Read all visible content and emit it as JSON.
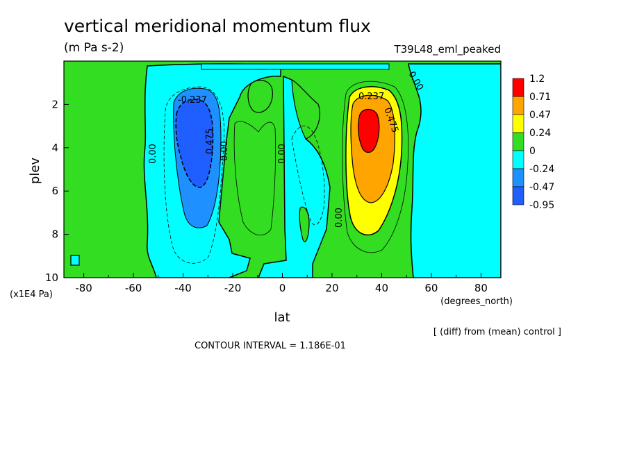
{
  "chart_data": {
    "type": "heatmap",
    "title": "vertical meridional momentum flux",
    "units": "(m Pa s-2)",
    "run_label": "T39L48_eml_peaked",
    "xlabel": "lat",
    "xunits": "(degrees_north)",
    "ylabel": "plev",
    "yunits": "(x1E4 Pa)",
    "xlim": [
      -88,
      88
    ],
    "ylim": [
      10,
      0
    ],
    "x_ticks": [
      -80,
      -60,
      -40,
      -20,
      0,
      20,
      40,
      60,
      80
    ],
    "x_tick_labels": [
      "-80",
      "-60",
      "-40",
      "-20",
      "0",
      "20",
      "40",
      "60",
      "80"
    ],
    "y_ticks": [
      2,
      4,
      6,
      8,
      10
    ],
    "y_tick_labels": [
      "2",
      "4",
      "6",
      "8",
      "10"
    ],
    "diff_note": "[ (diff) from (mean) control ]",
    "contour_interval": "CONTOUR INTERVAL = 1.186E-01",
    "colorbar": {
      "labels": [
        "1.2",
        "0.71",
        "0.47",
        "0.24",
        "0",
        "-0.24",
        "-0.47",
        "-0.95"
      ],
      "colors": [
        "#ff0000",
        "#ffa500",
        "#ffff00",
        "#33dd22",
        "#00ffff",
        "#1e90ff",
        "#1f5fff"
      ]
    },
    "contour_labels": [
      "-0.237",
      "0.475",
      "0.00",
      "0.00",
      "0.00",
      "0.237",
      "0.475",
      "0.00",
      "0.00"
    ],
    "features": [
      {
        "name": "southern negative maximum",
        "lat": -35,
        "plev": 3.5,
        "value": -0.7
      },
      {
        "name": "northern positive maximum",
        "lat": 35,
        "plev": 3.2,
        "value": 0.9
      }
    ]
  }
}
